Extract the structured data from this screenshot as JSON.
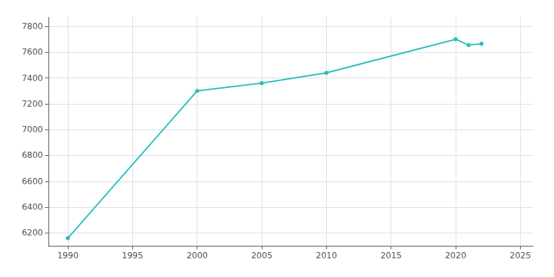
{
  "chart_data": {
    "type": "line",
    "x": [
      1990,
      2000,
      2005,
      2010,
      2020,
      2021,
      2022
    ],
    "values": [
      6160,
      7300,
      7360,
      7440,
      7700,
      7655,
      7665
    ],
    "color": "#2abfbf",
    "marker": "circle",
    "xlim": [
      1988.5,
      2026
    ],
    "ylim": [
      6100,
      7870
    ],
    "xticks": [
      1990,
      1995,
      2000,
      2005,
      2010,
      2015,
      2020,
      2025
    ],
    "yticks": [
      6200,
      6400,
      6600,
      6800,
      7000,
      7200,
      7400,
      7600,
      7800
    ],
    "grid": true
  }
}
